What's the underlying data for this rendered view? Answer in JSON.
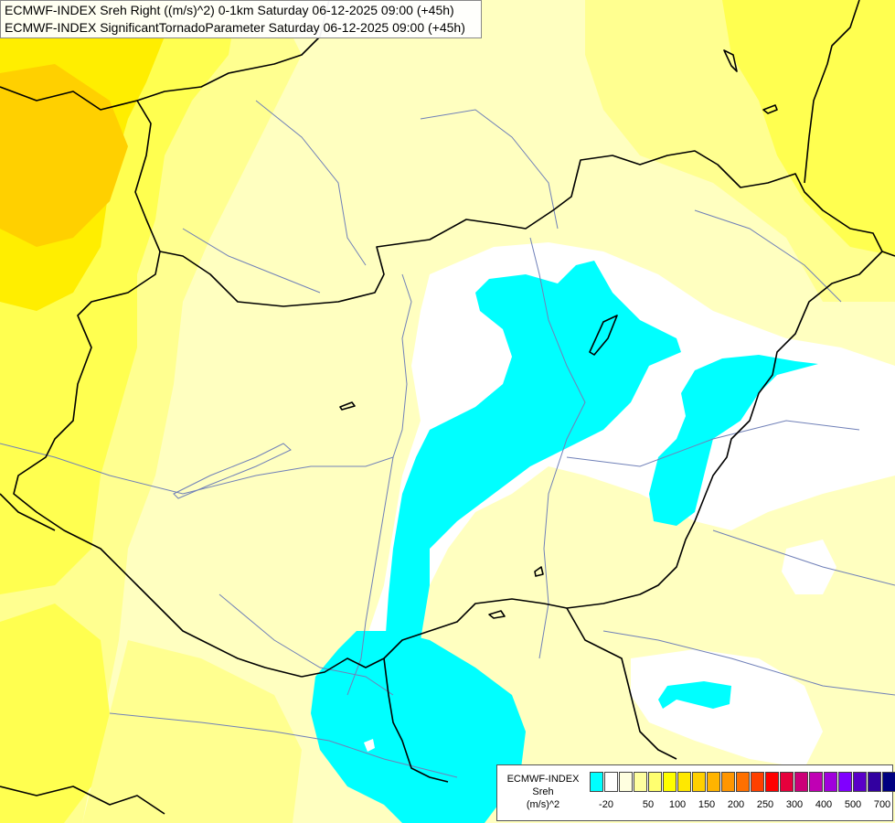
{
  "header": {
    "line1": "ECMWF-INDEX Sreh Right ((m/s)^2) 0-1km Saturday 06-12-2025 09:00 (+45h)",
    "line2": "ECMWF-INDEX SignificantTornadoParameter Saturday 06-12-2025 09:00 (+45h)"
  },
  "legend": {
    "line1": "ECMWF-INDEX",
    "line2": "Sreh",
    "line3": "(m/s)^2",
    "swatches": [
      "#00ffff",
      "#ffffff",
      "#ffffe0",
      "#ffffa0",
      "#ffff70",
      "#ffff00",
      "#ffe800",
      "#ffd000",
      "#ffb400",
      "#ff9600",
      "#ff7000",
      "#ff4000",
      "#ff0000",
      "#e6003c",
      "#cc0078",
      "#c000b4",
      "#a000dc",
      "#8000ff",
      "#5a00c8",
      "#3200a0",
      "#000080"
    ],
    "ticks": [
      "-20",
      "50",
      "100",
      "150",
      "200",
      "250",
      "300",
      "400",
      "500",
      "700"
    ]
  },
  "colors": {
    "bg_pale_yellow": "#ffffc0",
    "light_yellow": "#ffff90",
    "yellow": "#ffff50",
    "bright_yellow": "#ffee00",
    "gold": "#ffd000",
    "white": "#ffffff",
    "cyan": "#00ffff",
    "river": "#7080b8",
    "border": "#000000"
  }
}
